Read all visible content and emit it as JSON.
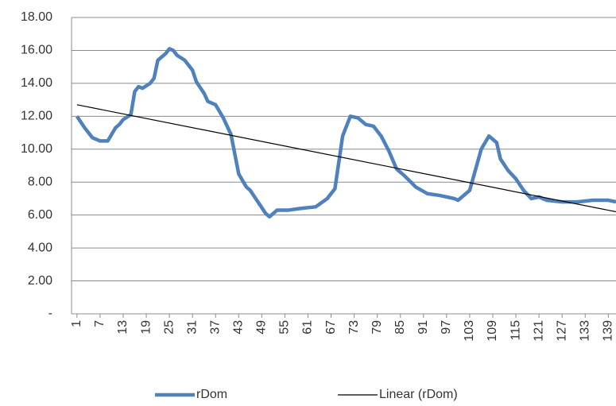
{
  "chart_data": {
    "type": "line",
    "series": [
      {
        "name": "rDom",
        "color": "#4f81bd",
        "x": [
          1,
          3,
          5,
          7,
          9,
          11,
          12,
          13,
          15,
          16,
          17,
          18,
          20,
          21,
          22,
          24,
          25,
          26,
          27,
          29,
          31,
          32,
          34,
          35,
          37,
          39,
          41,
          43,
          45,
          46,
          48,
          50,
          51,
          53,
          56,
          59,
          63,
          66,
          68,
          70,
          72,
          74,
          76,
          78,
          80,
          82,
          84,
          86,
          89,
          92,
          95,
          99,
          100,
          103,
          106,
          108,
          110,
          111,
          113,
          115,
          117,
          119,
          121,
          123,
          127,
          131,
          135,
          139,
          141
        ],
        "values": [
          12.0,
          11.3,
          10.7,
          10.5,
          10.5,
          11.3,
          11.5,
          11.8,
          12.1,
          13.5,
          13.8,
          13.7,
          14.0,
          14.3,
          15.4,
          15.8,
          16.1,
          16.0,
          15.7,
          15.4,
          14.8,
          14.1,
          13.4,
          12.9,
          12.7,
          11.9,
          10.9,
          8.5,
          7.7,
          7.5,
          6.8,
          6.1,
          5.9,
          6.3,
          6.3,
          6.4,
          6.5,
          7.0,
          7.6,
          10.8,
          12.0,
          11.9,
          11.5,
          11.4,
          10.8,
          9.9,
          8.8,
          8.4,
          7.7,
          7.3,
          7.2,
          7.0,
          6.9,
          7.5,
          10.0,
          10.8,
          10.4,
          9.4,
          8.7,
          8.2,
          7.5,
          7.0,
          7.1,
          6.9,
          6.8,
          6.8,
          6.9,
          6.9,
          6.8
        ]
      },
      {
        "name": "Linear (rDom)",
        "color": "#000000",
        "x": [
          1,
          141
        ],
        "values": [
          12.7,
          6.2
        ]
      }
    ],
    "xlim": [
      0,
      141
    ],
    "xticks": [
      1,
      7,
      13,
      19,
      25,
      31,
      37,
      43,
      49,
      55,
      61,
      67,
      73,
      79,
      85,
      91,
      97,
      103,
      109,
      115,
      121,
      127,
      133,
      139
    ],
    "ylim": [
      0,
      18
    ],
    "yticks": [
      {
        "value": 0,
        "label": "-"
      },
      {
        "value": 2,
        "label": "2.00"
      },
      {
        "value": 4,
        "label": "4.00"
      },
      {
        "value": 6,
        "label": "6.00"
      },
      {
        "value": 8,
        "label": "8.00"
      },
      {
        "value": 10,
        "label": "10.00"
      },
      {
        "value": 12,
        "label": "12.00"
      },
      {
        "value": 14,
        "label": "14.00"
      },
      {
        "value": 16,
        "label": "16.00"
      },
      {
        "value": 18,
        "label": "18.00"
      }
    ],
    "grid": true
  }
}
